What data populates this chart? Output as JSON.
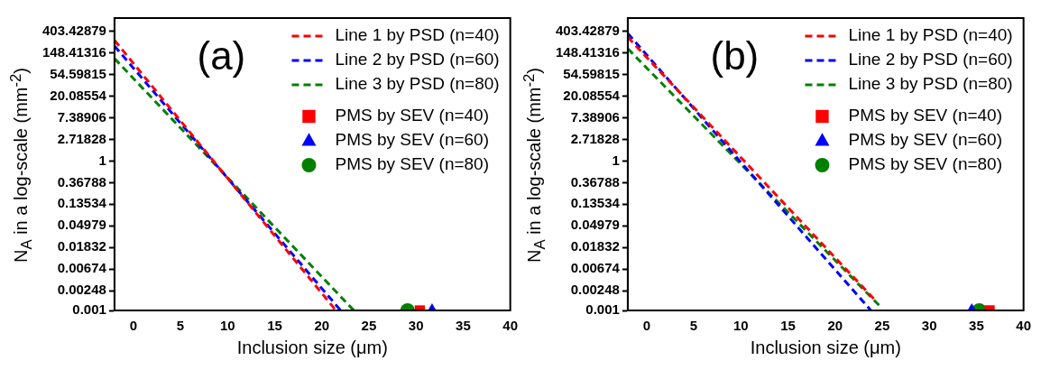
{
  "chart_data": [
    {
      "type": "line",
      "annotations": [
        "(a)"
      ],
      "xlabel": "Inclusion size (μm)",
      "ylabel": "N$_{A}$ in a log-scale (mm$^{-2}$)",
      "log": "y",
      "grid": false,
      "legend": "top right",
      "xlim": [
        -2,
        40
      ],
      "xticks": [
        0,
        5,
        10,
        15,
        20,
        25,
        30,
        35,
        40
      ],
      "ylim": [
        0.001,
        740
      ],
      "yticks": [
        0.001,
        0.00248,
        0.00674,
        0.01832,
        0.04979,
        0.13534,
        0.36788,
        1,
        2.71828,
        7.38906,
        20.08554,
        54.59815,
        148.41316,
        403.42879
      ],
      "series": [
        {
          "name": "Line 1 by PSD (n=40)",
          "color": "#ff0000",
          "line_style": "dashed",
          "marker": "none",
          "x": [
            -2,
            21.5
          ],
          "values": [
            265,
            0.001
          ]
        },
        {
          "name": "Line 2 by PSD (n=60)",
          "color": "#0000ff",
          "line_style": "dashed",
          "marker": "none",
          "x": [
            -2,
            22.0
          ],
          "values": [
            204,
            0.001
          ]
        },
        {
          "name": "Line 3 by PSD (n=80)",
          "color": "#008000",
          "line_style": "dashed",
          "marker": "none",
          "x": [
            -2,
            23.4
          ],
          "values": [
            114,
            0.001
          ]
        },
        {
          "name": "PMS by SEV (n=40)",
          "type": "scatter",
          "color": "#ff0000",
          "marker": "square",
          "x": [
            30.4
          ],
          "values": [
            0.001
          ]
        },
        {
          "name": "PMS by SEV (n=60)",
          "type": "scatter",
          "color": "#0000ff",
          "marker": "triangle",
          "x": [
            31.7
          ],
          "values": [
            0.001
          ]
        },
        {
          "name": "PMS by SEV (n=80)",
          "type": "scatter",
          "color": "#008000",
          "marker": "circle",
          "x": [
            29.1
          ],
          "values": [
            0.001
          ]
        }
      ]
    },
    {
      "type": "line",
      "annotations": [
        "(b)"
      ],
      "xlabel": "Inclusion size (μm)",
      "ylabel": "N$_{A}$ in a log-scale (mm$^{-2}$)",
      "log": "y",
      "grid": false,
      "legend": "top right",
      "xlim": [
        -2,
        40
      ],
      "xticks": [
        0,
        5,
        10,
        15,
        20,
        25,
        30,
        35,
        40
      ],
      "ylim": [
        0.001,
        740
      ],
      "yticks": [
        0.001,
        0.00248,
        0.00674,
        0.01832,
        0.04979,
        0.13534,
        0.36788,
        1,
        2.71828,
        7.38906,
        20.08554,
        54.59815,
        148.41316,
        403.42879
      ],
      "series": [
        {
          "name": "Line 1 by PSD (n=40)",
          "color": "#ff0000",
          "line_style": "dashed",
          "marker": "none",
          "x": [
            -2,
            24.4
          ],
          "values": [
            305,
            0.0015
          ]
        },
        {
          "name": "Line 2 by PSD (n=60)",
          "color": "#0000ff",
          "line_style": "dashed",
          "marker": "none",
          "x": [
            -2,
            23.8
          ],
          "values": [
            365,
            0.001
          ]
        },
        {
          "name": "Line 3 by PSD (n=80)",
          "color": "#008000",
          "line_style": "dashed",
          "marker": "none",
          "x": [
            -2,
            24.8
          ],
          "values": [
            180,
            0.0012
          ]
        },
        {
          "name": "PMS by SEV (n=40)",
          "type": "scatter",
          "color": "#ff0000",
          "marker": "square",
          "x": [
            36.4
          ],
          "values": [
            0.001
          ]
        },
        {
          "name": "PMS by SEV (n=60)",
          "type": "scatter",
          "color": "#0000ff",
          "marker": "triangle",
          "x": [
            34.5
          ],
          "values": [
            0.001
          ]
        },
        {
          "name": "PMS by SEV (n=80)",
          "type": "scatter",
          "color": "#008000",
          "marker": "circle",
          "x": [
            35.3
          ],
          "values": [
            0.001
          ]
        }
      ]
    }
  ]
}
